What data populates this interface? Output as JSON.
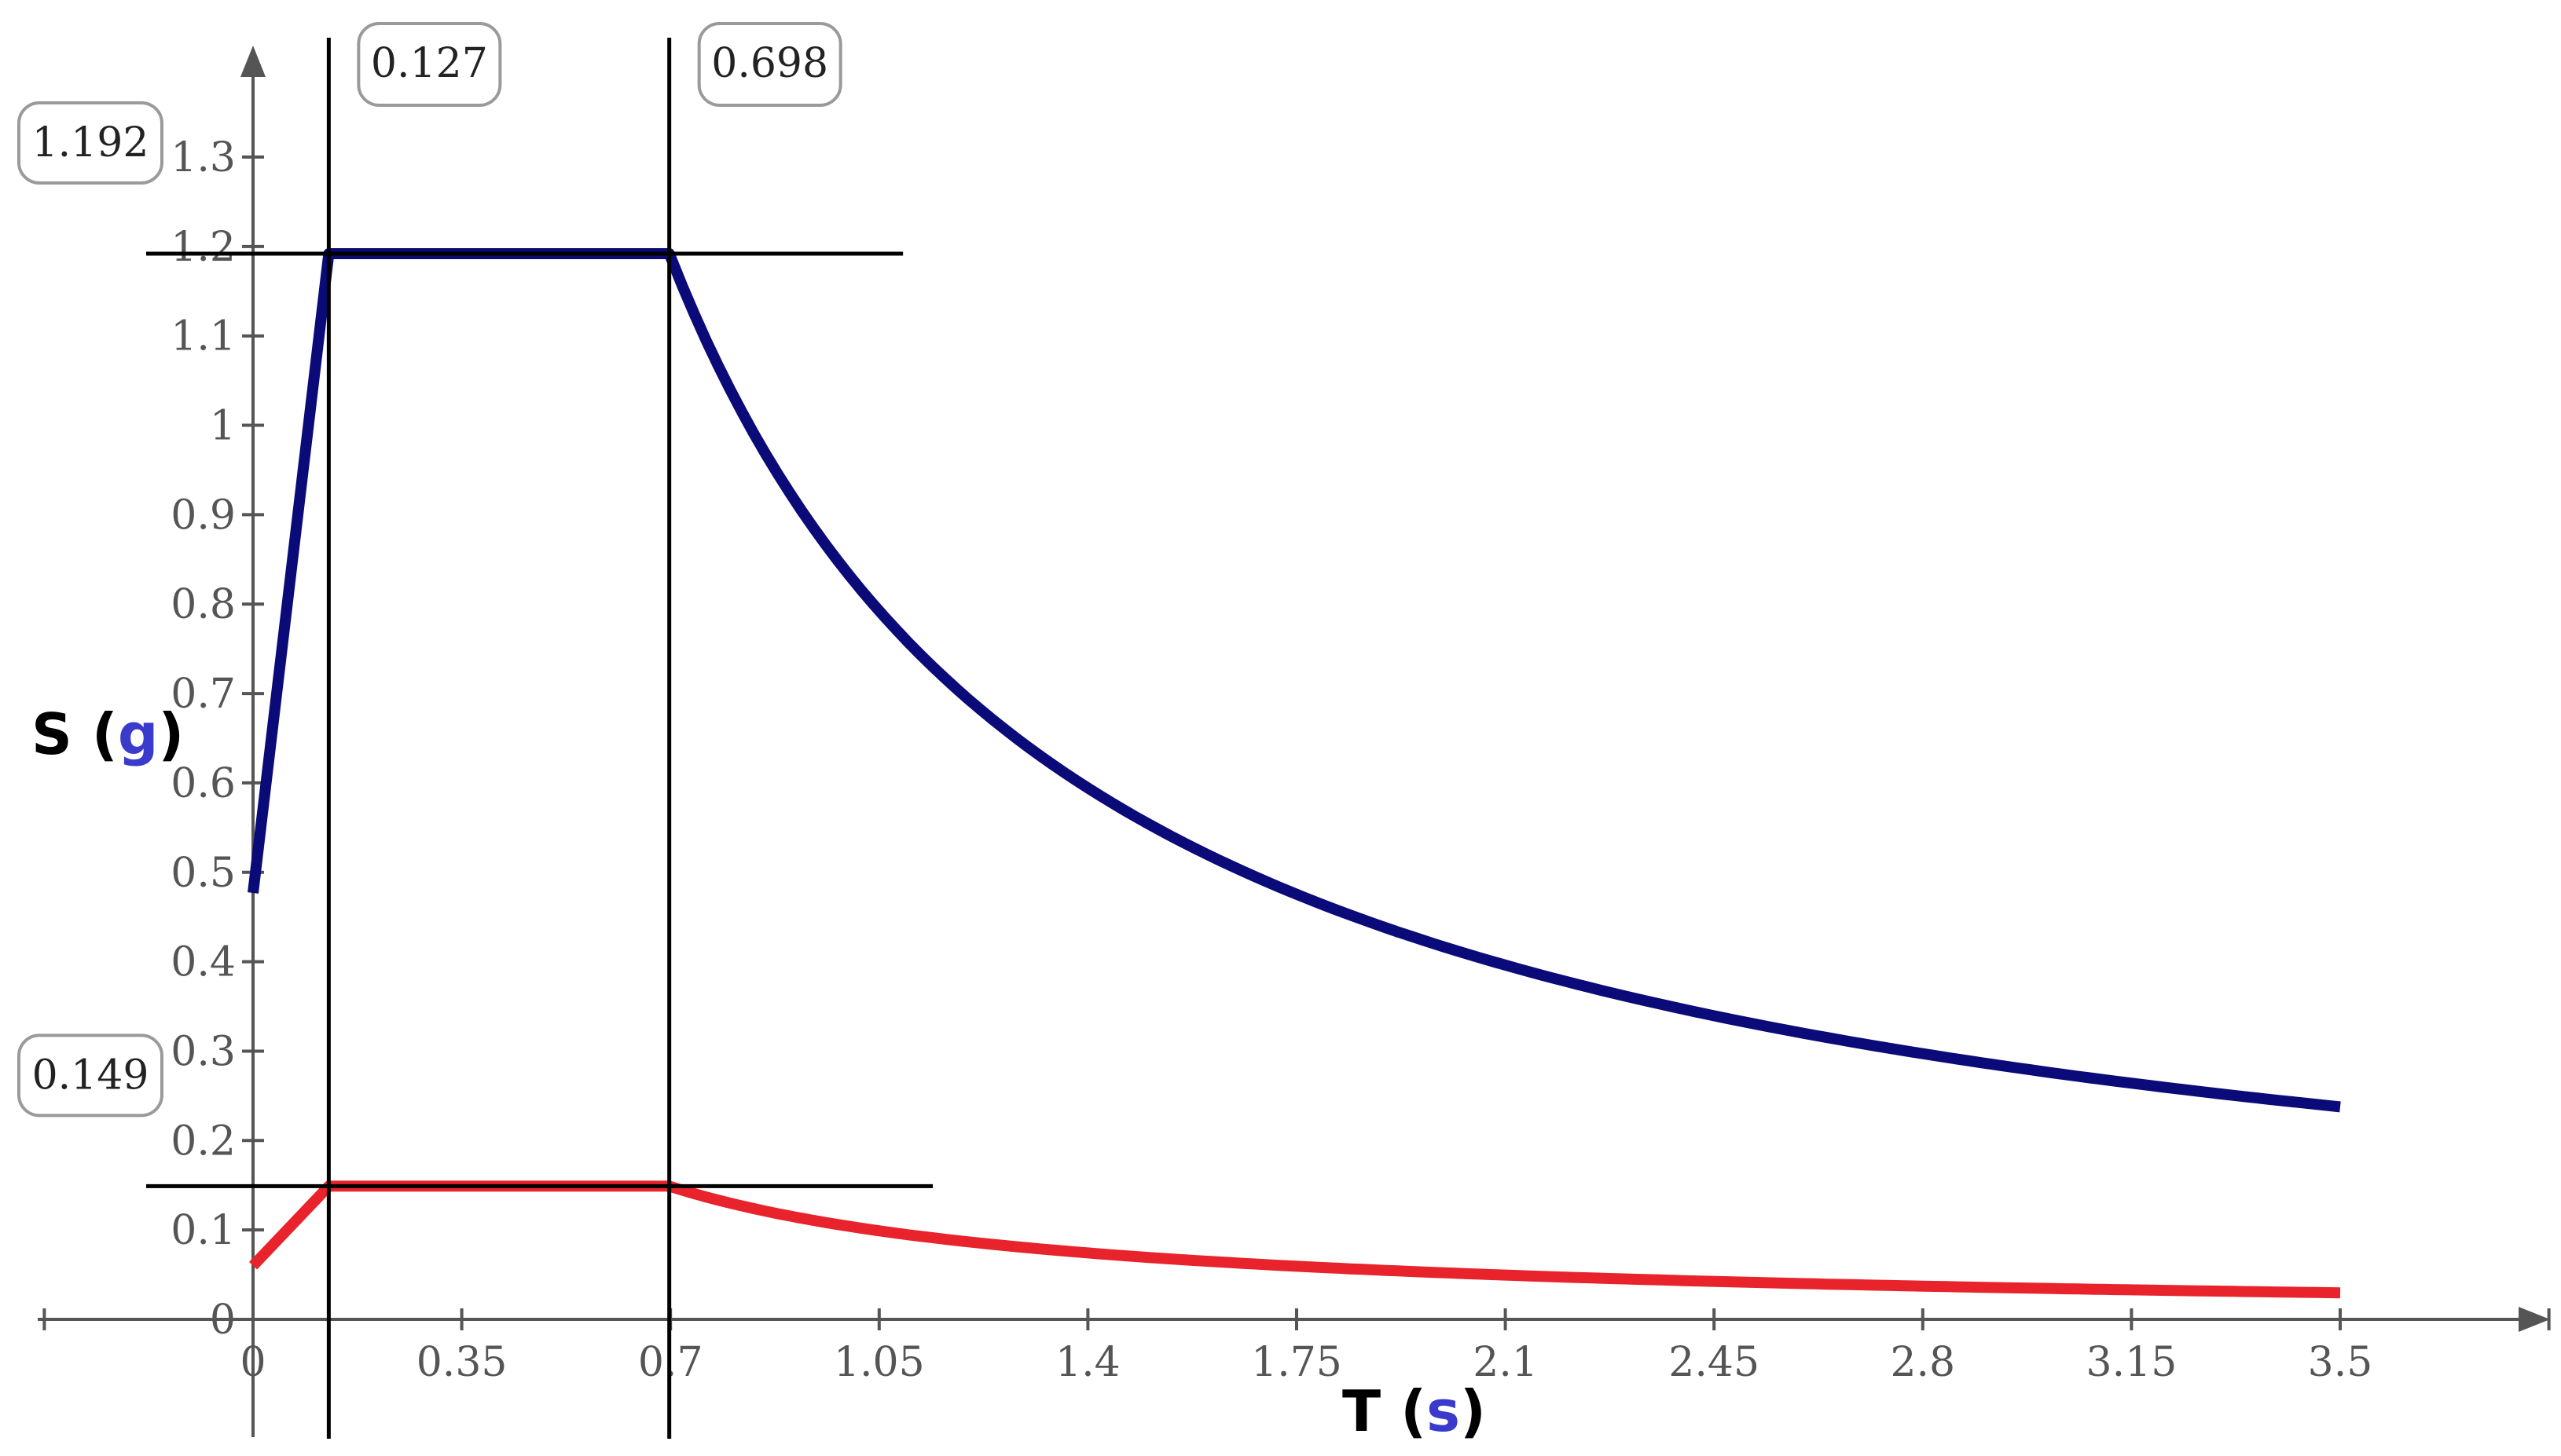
{
  "chart_data": {
    "type": "line",
    "xlabel": {
      "main": "T",
      "unit": "s"
    },
    "ylabel": {
      "main": "S",
      "unit": "g"
    },
    "xlim": [
      0,
      3.5
    ],
    "ylim": [
      0,
      1.3
    ],
    "x_ticks": [
      "0",
      "0.35",
      "0.7",
      "1.05",
      "1.4",
      "1.75",
      "2.1",
      "2.45",
      "2.8",
      "3.15",
      "3.5"
    ],
    "y_ticks": [
      "0",
      "0.1",
      "0.2",
      "0.3",
      "0.4",
      "0.5",
      "0.6",
      "0.7",
      "0.8",
      "0.9",
      "1",
      "1.1",
      "1.2",
      "1.3"
    ],
    "series": [
      {
        "color": "#0a0a78",
        "values": {
          "x": [
            0,
            0.127,
            0.698,
            0.8,
            0.9,
            1.0,
            1.2,
            1.4,
            1.6,
            1.8,
            2.0,
            2.2,
            2.4,
            2.6,
            2.8,
            3.0,
            3.2,
            3.5
          ],
          "y": [
            0.477,
            1.192,
            1.192,
            1.04,
            0.924,
            0.832,
            0.693,
            0.594,
            0.52,
            0.462,
            0.416,
            0.378,
            0.347,
            0.32,
            0.297,
            0.277,
            0.26,
            0.238
          ]
        }
      },
      {
        "color": "#e8232b",
        "values": {
          "x": [
            0,
            0.127,
            0.698,
            0.8,
            0.9,
            1.0,
            1.2,
            1.4,
            1.6,
            1.8,
            2.0,
            2.2,
            2.4,
            2.6,
            2.8,
            3.0,
            3.2,
            3.5
          ],
          "y": [
            0.06,
            0.149,
            0.149,
            0.13,
            0.116,
            0.104,
            0.087,
            0.074,
            0.065,
            0.058,
            0.052,
            0.047,
            0.043,
            0.04,
            0.037,
            0.035,
            0.033,
            0.03
          ]
        }
      }
    ],
    "markers": {
      "vertical": [
        {
          "x": 0.127,
          "label": "0.127"
        },
        {
          "x": 0.698,
          "label": "0.698"
        }
      ],
      "horizontal": [
        {
          "y": 1.192,
          "label": "1.192",
          "x_end": 1.09
        },
        {
          "y": 0.149,
          "label": "0.149",
          "x_end": 1.14
        }
      ]
    },
    "colors": {
      "unit": "#3a3acc",
      "axis": "#555555"
    }
  }
}
